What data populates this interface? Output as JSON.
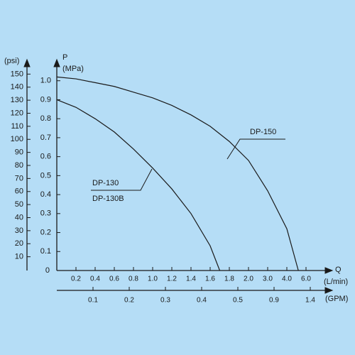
{
  "chart_data": {
    "type": "line",
    "ylabel": "P",
    "yunit": "(MPa)",
    "y2label": "(psi)",
    "xlabel": "Q",
    "xunit": "(L/min)",
    "x2label": "(GPM)",
    "ylim": [
      0,
      1.1
    ],
    "yticks": [
      0,
      0.1,
      0.2,
      0.3,
      0.4,
      0.5,
      0.6,
      0.7,
      0.8,
      0.9,
      {
        "value": 1,
        "label": "1.0"
      }
    ],
    "y2lim": [
      0,
      160
    ],
    "y2ticks": [
      10,
      20,
      30,
      40,
      50,
      60,
      70,
      80,
      90,
      100,
      110,
      120,
      130,
      140,
      150
    ],
    "xlim": [
      0,
      6
    ],
    "xticks": [
      0.2,
      0.4,
      0.6,
      0.8,
      {
        "value": 1,
        "label": "1.0"
      },
      1.2,
      1.4,
      1.6,
      1.8,
      {
        "value": 2,
        "label": "2.0"
      },
      {
        "value": 3,
        "label": "3.0"
      },
      {
        "value": 4,
        "label": "4.0"
      },
      {
        "value": 6,
        "label": "6.0"
      }
    ],
    "x2lim": [
      0,
      1.4
    ],
    "x2ticks": [
      0.1,
      0.2,
      0.3,
      0.4,
      0.5,
      0.9,
      1.4
    ],
    "series": [
      {
        "name": "DP-150",
        "color": "#1e1e1e",
        "x": [
          0,
          0.2,
          0.4,
          0.6,
          0.8,
          1.0,
          1.2,
          1.4,
          1.6,
          1.8,
          2.0,
          3.0,
          4.0,
          5.2
        ],
        "values": [
          1.02,
          1.01,
          0.99,
          0.97,
          0.94,
          0.91,
          0.87,
          0.82,
          0.76,
          0.68,
          0.58,
          0.42,
          0.22,
          0
        ]
      },
      {
        "name": "DP-130",
        "name_2": "DP-130B",
        "color": "#1e1e1e",
        "x": [
          0,
          0.2,
          0.4,
          0.6,
          0.8,
          1.0,
          1.2,
          1.4,
          1.6,
          1.7
        ],
        "values": [
          0.9,
          0.86,
          0.8,
          0.73,
          0.64,
          0.54,
          0.43,
          0.3,
          0.13,
          0
        ]
      }
    ]
  }
}
